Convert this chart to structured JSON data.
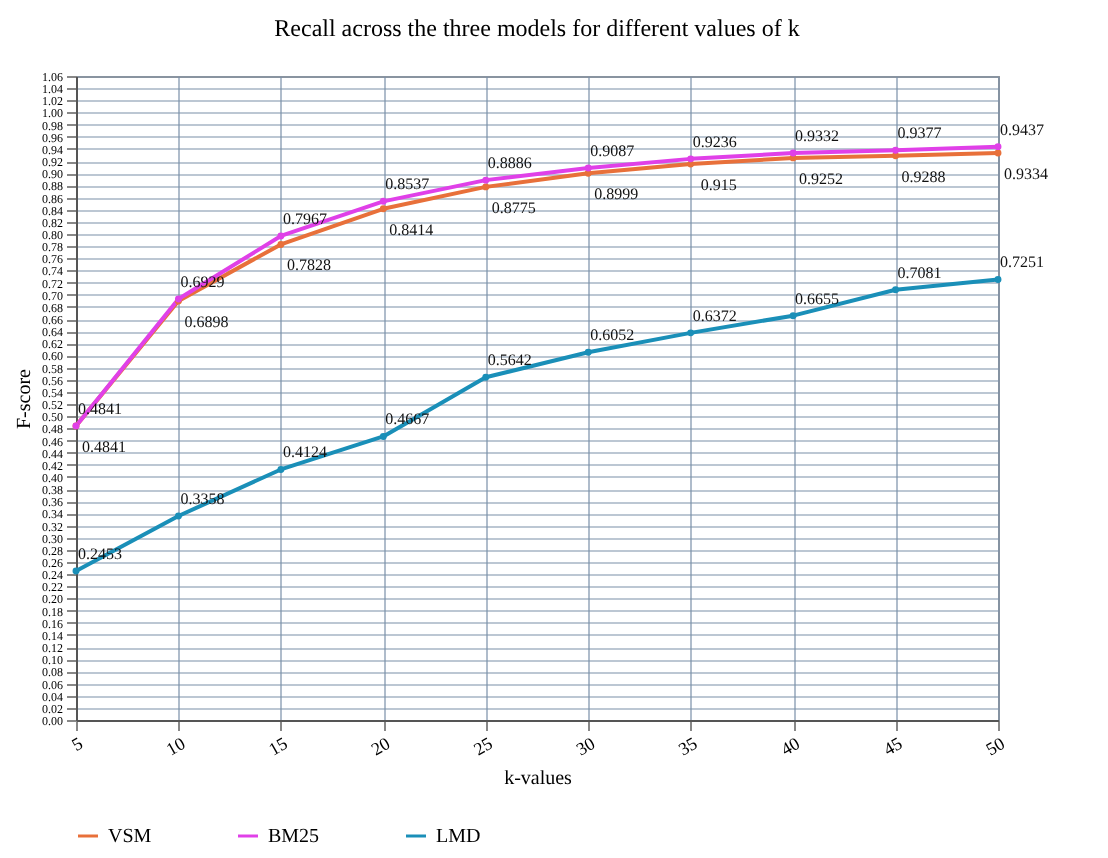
{
  "chart_data": {
    "type": "line",
    "title": "Recall across the three models for different values of k",
    "xlabel": "k-values",
    "ylabel": "F-score",
    "x": [
      5,
      10,
      15,
      20,
      25,
      30,
      35,
      40,
      45,
      50
    ],
    "series": [
      {
        "name": "VSM",
        "color": "#e8703a",
        "values": [
          0.4841,
          0.6898,
          0.7828,
          0.8414,
          0.8775,
          0.8999,
          0.915,
          0.9252,
          0.9288,
          0.9334
        ]
      },
      {
        "name": "BM25",
        "color": "#e040e8",
        "values": [
          0.4841,
          0.6929,
          0.7967,
          0.8537,
          0.8886,
          0.9087,
          0.9236,
          0.9332,
          0.9377,
          0.9437
        ]
      },
      {
        "name": "LMD",
        "color": "#1a8fb8",
        "values": [
          0.2453,
          0.3358,
          0.4124,
          0.4667,
          0.5642,
          0.6052,
          0.6372,
          0.6655,
          0.7081,
          0.7251
        ]
      }
    ],
    "xlim": [
      5,
      50
    ],
    "xticks": [
      5,
      10,
      15,
      20,
      25,
      30,
      35,
      40,
      45,
      50
    ],
    "ylim": [
      0,
      1.06
    ],
    "yticks": [
      {
        "value": 0,
        "label": "0.00"
      },
      {
        "value": 0.02,
        "label": "0.02"
      },
      {
        "value": 0.04,
        "label": "0.04"
      },
      {
        "value": 0.06,
        "label": "0.06"
      },
      {
        "value": 0.08,
        "label": "0.08"
      },
      {
        "value": 0.1,
        "label": "0.10"
      },
      {
        "value": 0.12,
        "label": "0.12"
      },
      {
        "value": 0.14,
        "label": "0.14"
      },
      {
        "value": 0.16,
        "label": "0.16"
      },
      {
        "value": 0.18,
        "label": "0.18"
      },
      {
        "value": 0.2,
        "label": "0.20"
      },
      {
        "value": 0.22,
        "label": "0.22"
      },
      {
        "value": 0.24,
        "label": "0.24"
      },
      {
        "value": 0.26,
        "label": "0.26"
      },
      {
        "value": 0.28,
        "label": "0.28"
      },
      {
        "value": 0.3,
        "label": "0.30"
      },
      {
        "value": 0.32,
        "label": "0.32"
      },
      {
        "value": 0.34,
        "label": "0.34"
      },
      {
        "value": 0.36,
        "label": "0.36"
      },
      {
        "value": 0.38,
        "label": "0.38"
      },
      {
        "value": 0.4,
        "label": "0.40"
      },
      {
        "value": 0.42,
        "label": "0.42"
      },
      {
        "value": 0.44,
        "label": "0.44"
      },
      {
        "value": 0.46,
        "label": "0.46"
      },
      {
        "value": 0.48,
        "label": "0.48"
      },
      {
        "value": 0.5,
        "label": "0.50"
      },
      {
        "value": 0.52,
        "label": "0.52"
      },
      {
        "value": 0.54,
        "label": "0.54"
      },
      {
        "value": 0.56,
        "label": "0.56"
      },
      {
        "value": 0.58,
        "label": "0.58"
      },
      {
        "value": 0.6,
        "label": "0.60"
      },
      {
        "value": 0.62,
        "label": "0.62"
      },
      {
        "value": 0.64,
        "label": "0.64"
      },
      {
        "value": 0.66,
        "label": "0.66"
      },
      {
        "value": 0.68,
        "label": "0.68"
      },
      {
        "value": 0.7,
        "label": "0.70"
      },
      {
        "value": 0.72,
        "label": "0.72"
      },
      {
        "value": 0.74,
        "label": "0.74"
      },
      {
        "value": 0.76,
        "label": "0.76"
      },
      {
        "value": 0.78,
        "label": "0.78"
      },
      {
        "value": 0.8,
        "label": "0.80"
      },
      {
        "value": 0.82,
        "label": "0.82"
      },
      {
        "value": 0.84,
        "label": "0.84"
      },
      {
        "value": 0.86,
        "label": "0.86"
      },
      {
        "value": 0.88,
        "label": "0.88"
      },
      {
        "value": 0.9,
        "label": "0.90"
      },
      {
        "value": 0.92,
        "label": "0.92"
      },
      {
        "value": 0.94,
        "label": "0.94"
      },
      {
        "value": 0.96,
        "label": "0.96"
      },
      {
        "value": 0.98,
        "label": "0.98"
      },
      {
        "value": 1,
        "label": "1.00"
      },
      {
        "value": 1.02,
        "label": "1.02"
      },
      {
        "value": 1.04,
        "label": "1.04"
      },
      {
        "value": 1.06,
        "label": "1.06"
      }
    ],
    "grid": true,
    "legend": "bottom",
    "marker": "circle",
    "line_style": "solid",
    "data_labels": true
  }
}
